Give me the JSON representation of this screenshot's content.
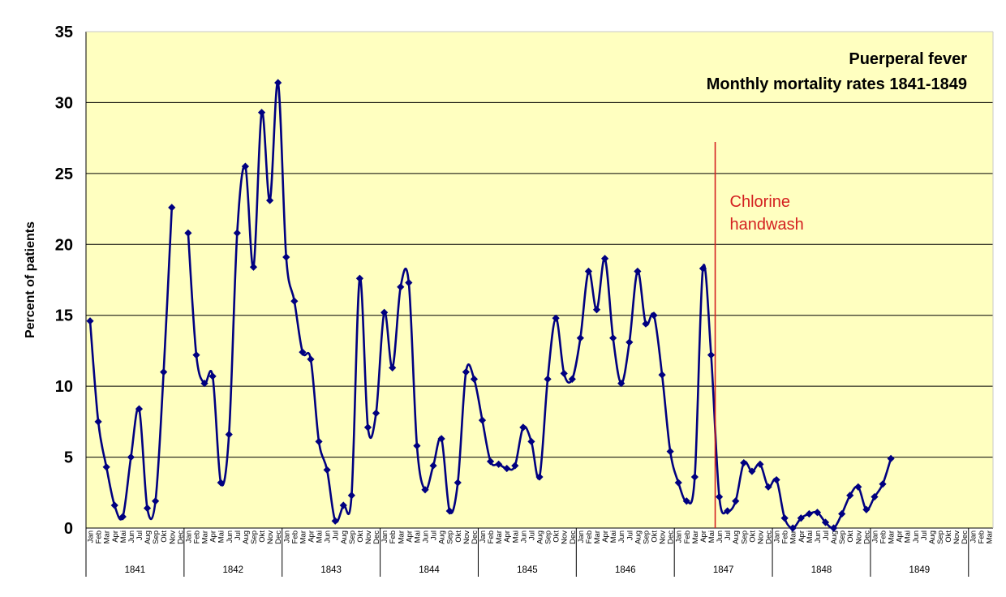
{
  "chart_data": {
    "type": "line",
    "title": "Puerperal fever",
    "subtitle": "Monthly mortality rates 1841-1849",
    "ylabel": "Percent of patients",
    "xlabel": "",
    "ylim": [
      0,
      35
    ],
    "yticks": [
      "0",
      "5",
      "10",
      "15",
      "20",
      "25",
      "30",
      "35"
    ],
    "grid": true,
    "legend": "none",
    "colors": {
      "plot_bg": "#ffffc0",
      "line": "#000080",
      "marker": "#000080",
      "gridline": "#000000",
      "annotation": "#d42020"
    },
    "month_labels": [
      "Jan",
      "Feb",
      "Mar",
      "Apr",
      "Mai",
      "Jun",
      "Jul",
      "Aug",
      "Sep",
      "Okt",
      "Nov",
      "Dec"
    ],
    "years": [
      "1841",
      "1842",
      "1843",
      "1844",
      "1845",
      "1846",
      "1847",
      "1848",
      "1849"
    ],
    "annotation": {
      "lines": [
        "Chlorine",
        "handwash"
      ],
      "at": "1847 Mai"
    },
    "series": [
      {
        "values": [
          14.6,
          7.5,
          4.3,
          1.6,
          0.8,
          5.0,
          8.4,
          1.4,
          1.9,
          11.0,
          22.6,
          null,
          20.8,
          12.2,
          10.2,
          10.7,
          3.2,
          6.6,
          20.8,
          25.5,
          18.4,
          29.3,
          23.1,
          31.4,
          19.1,
          16.0,
          12.4,
          11.9,
          6.1,
          4.1,
          0.5,
          1.6,
          2.3,
          17.6,
          7.1,
          8.1,
          15.2,
          11.3,
          17.0,
          17.3,
          5.8,
          2.7,
          4.4,
          6.3,
          1.2,
          3.2,
          11.0,
          10.5,
          7.6,
          4.7,
          4.5,
          4.2,
          4.4,
          7.1,
          6.1,
          3.6,
          10.5,
          14.8,
          10.9,
          10.5,
          13.4,
          18.1,
          15.4,
          19.0,
          13.4,
          10.2,
          13.1,
          18.1,
          14.4,
          15.0,
          10.8,
          5.4,
          3.2,
          1.9,
          3.6,
          18.3,
          12.2,
          2.2,
          1.2,
          1.9,
          4.6,
          4.0,
          4.5,
          2.9,
          3.4,
          0.7,
          0.0,
          0.7,
          1.0,
          1.1,
          0.4,
          0.0,
          1.0,
          2.3,
          2.9,
          1.3,
          2.2,
          3.1,
          4.9
        ]
      }
    ]
  }
}
